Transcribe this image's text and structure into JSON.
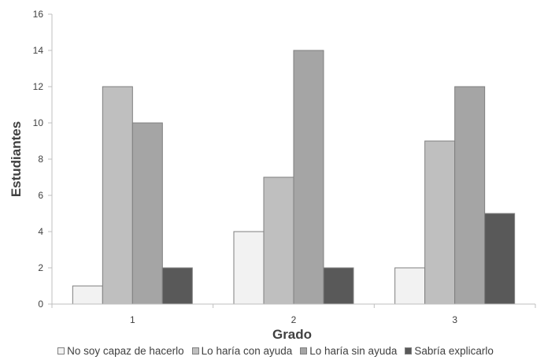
{
  "chart_data": {
    "type": "bar",
    "title": "",
    "xlabel": "Grado",
    "ylabel": "Estudiantes",
    "categories": [
      "1",
      "2",
      "3"
    ],
    "ylim": [
      0,
      16
    ],
    "yticks": [
      "0",
      "2",
      "4",
      "6",
      "8",
      "10",
      "12",
      "14",
      "16"
    ],
    "grid": false,
    "legend_position": "bottom",
    "series": [
      {
        "name": "No soy capaz de hacerlo",
        "color": "#f2f2f2",
        "values": [
          1,
          4,
          2
        ]
      },
      {
        "name": "Lo haría con ayuda",
        "color": "#bfbfbf",
        "values": [
          12,
          7,
          9
        ]
      },
      {
        "name": "Lo haría sin ayuda",
        "color": "#a5a5a5",
        "values": [
          10,
          14,
          12
        ]
      },
      {
        "name": "Sabría explicarlo",
        "color": "#595959",
        "values": [
          2,
          2,
          5
        ]
      }
    ]
  }
}
